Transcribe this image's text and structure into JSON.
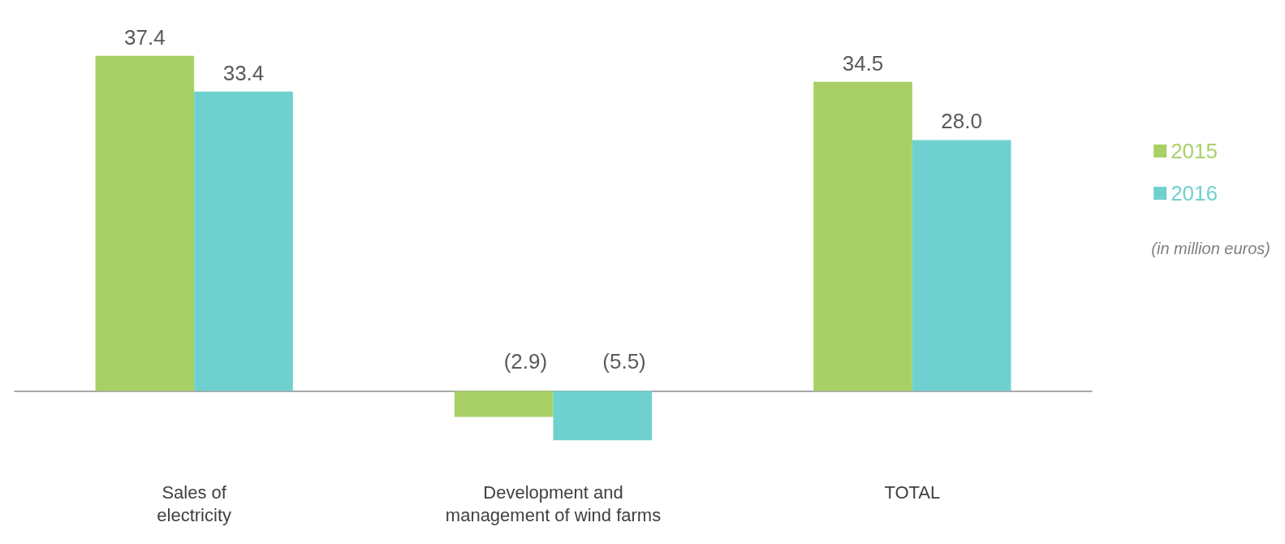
{
  "chart_data": {
    "type": "bar",
    "categories": [
      "Sales of\nelectricity",
      "Development and\nmanagement of wind farms",
      "TOTAL"
    ],
    "series": [
      {
        "name": "2015",
        "color": "#a8d066",
        "values": [
          37.4,
          -2.9,
          34.5
        ],
        "value_labels": [
          "37.4",
          "(2.9)",
          "34.5"
        ]
      },
      {
        "name": "2016",
        "color": "#6fd1cf",
        "values": [
          33.4,
          -5.5,
          28.0
        ],
        "value_labels": [
          "33.4",
          "(5.5)",
          "28.0"
        ]
      }
    ],
    "annotations": [
      "(in million euros)"
    ],
    "legend": "right",
    "grid": false
  }
}
